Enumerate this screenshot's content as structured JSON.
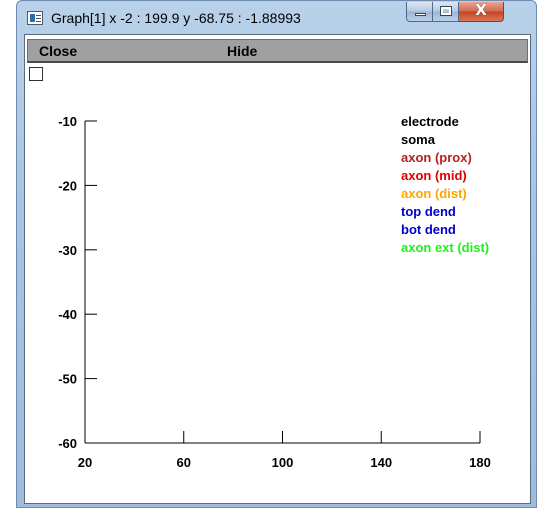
{
  "window": {
    "title": "Graph[1]  x -2 : 199.9  y -68.75 : -1.88993",
    "close_glyph": "X",
    "icon": "graph-app-icon"
  },
  "menubar": {
    "close_label": "Close",
    "hide_label": "Hide"
  },
  "chart_data": {
    "type": "line",
    "title": "",
    "xlabel": "",
    "ylabel": "",
    "xlim": [
      20,
      180
    ],
    "ylim": [
      -60,
      -10
    ],
    "x_ticks": [
      20,
      60,
      100,
      140,
      180
    ],
    "y_ticks": [
      -10,
      -20,
      -30,
      -40,
      -50,
      -60
    ],
    "x_tick_labels": [
      "20",
      "60",
      "100",
      "140",
      "180"
    ],
    "y_tick_labels": [
      "-10",
      "-20",
      "-30",
      "-40",
      "-50",
      "-60"
    ],
    "grid": false,
    "legend_position": "top-right",
    "series": [
      {
        "name": "electrode",
        "color": "#000000",
        "x": [],
        "y": []
      },
      {
        "name": "soma",
        "color": "#000000",
        "x": [],
        "y": []
      },
      {
        "name": "axon (prox)",
        "color": "#b22222",
        "x": [],
        "y": []
      },
      {
        "name": "axon (mid)",
        "color": "#e00000",
        "x": [],
        "y": []
      },
      {
        "name": "axon (dist)",
        "color": "#ffa500",
        "x": [],
        "y": []
      },
      {
        "name": "top dend",
        "color": "#0000cd",
        "x": [],
        "y": []
      },
      {
        "name": "bot dend",
        "color": "#0000cd",
        "x": [],
        "y": []
      },
      {
        "name": "axon ext (dist)",
        "color": "#22ee22",
        "x": [],
        "y": []
      }
    ]
  }
}
